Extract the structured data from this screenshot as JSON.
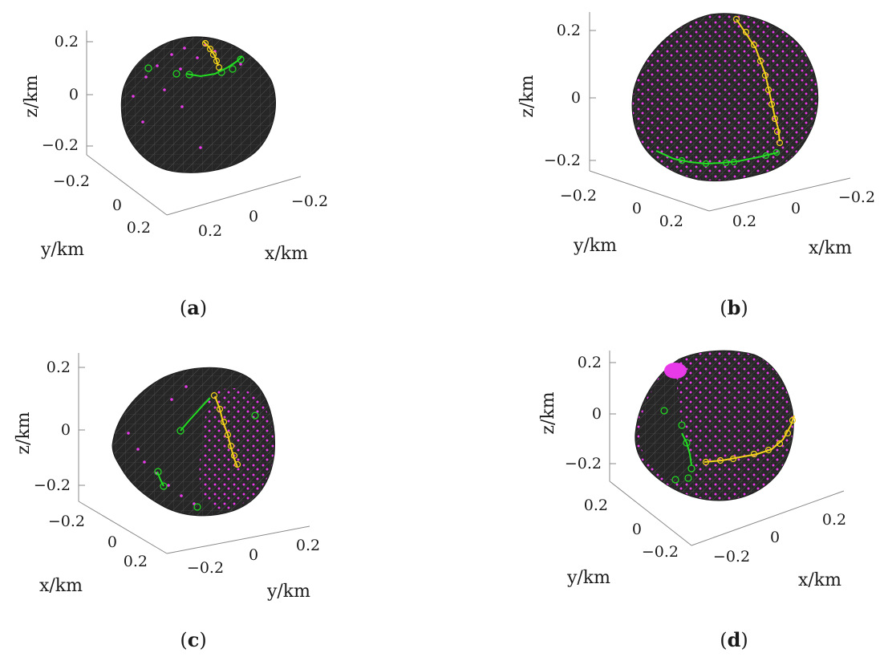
{
  "colors": {
    "body": "#262626",
    "mesh": "#4d4d4d",
    "magenta_points": "#e83ae8",
    "green_path": "#22dd22",
    "yellow_path": "#f2d21a",
    "axis": "#8a8a8a"
  },
  "panels": [
    {
      "id": "a",
      "caption_label": "a",
      "z_label": "z/km",
      "y_label": "y/km",
      "x_label": "x/km",
      "z_ticks": [
        "0.2",
        "0",
        "−0.2"
      ],
      "left_ticks": [
        "−0.2",
        "0",
        "0.2"
      ],
      "right_ticks": [
        "0.2",
        "0",
        "−0.2"
      ]
    },
    {
      "id": "b",
      "caption_label": "b",
      "z_label": "z/km",
      "y_label": "y/km",
      "x_label": "x/km",
      "z_ticks": [
        "0.2",
        "0",
        "−0.2"
      ],
      "left_ticks": [
        "−0.2",
        "0",
        "0.2"
      ],
      "right_ticks": [
        "0.2",
        "0",
        "−0.2"
      ]
    },
    {
      "id": "c",
      "caption_label": "c",
      "z_label": "z/km",
      "y_label": "x/km",
      "x_label": "y/km",
      "z_ticks": [
        "0.2",
        "0",
        "−0.2"
      ],
      "left_ticks": [
        "−0.2",
        "0",
        "0.2"
      ],
      "right_ticks": [
        "−0.2",
        "0",
        "0.2"
      ]
    },
    {
      "id": "d",
      "caption_label": "d",
      "z_label": "z/km",
      "y_label": "y/km",
      "x_label": "x/km",
      "z_ticks": [
        "0.2",
        "0",
        "−0.2"
      ],
      "left_ticks": [
        "0.2",
        "0",
        "−0.2"
      ],
      "right_ticks": [
        "−0.2",
        "0",
        "0.2"
      ]
    }
  ]
}
